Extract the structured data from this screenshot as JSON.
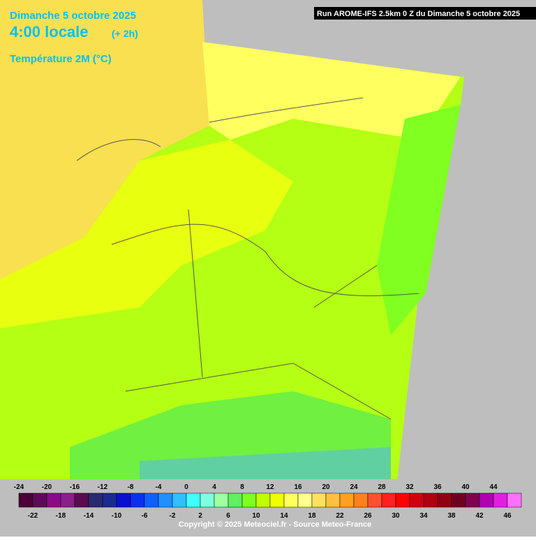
{
  "header": {
    "date": "Dimanche 5 octobre 2025",
    "time": "4:00 locale",
    "offset": "(+ 2h)",
    "variable": "Température 2M (°C)",
    "run": "Run AROME-IFS 2.5km 0 Z du Dimanche 5 octobre 2025"
  },
  "colorbar": {
    "ticks": [
      -24,
      -22,
      -20,
      -18,
      -16,
      -14,
      -12,
      -10,
      -8,
      -6,
      -4,
      -2,
      0,
      2,
      4,
      6,
      8,
      10,
      12,
      14,
      16,
      18,
      20,
      22,
      24,
      26,
      28,
      30,
      32,
      34,
      36,
      38,
      40,
      42,
      44,
      46
    ],
    "colors": [
      "#4a0036",
      "#5e0a5a",
      "#880a88",
      "#8a1e8a",
      "#5a0a50",
      "#2a2a70",
      "#1a2a90",
      "#0a10d0",
      "#0a30f0",
      "#1060ff",
      "#2090ff",
      "#30c0ff",
      "#40ffff",
      "#80ffe0",
      "#a0ffa0",
      "#60f060",
      "#80ff20",
      "#c0ff00",
      "#f0ff00",
      "#ffff60",
      "#ffff90",
      "#ffe060",
      "#ffc040",
      "#ffa020",
      "#ff8020",
      "#ff5030",
      "#ff2020",
      "#ff0000",
      "#d00010",
      "#b00010",
      "#900010",
      "#700020",
      "#800050",
      "#b000b0",
      "#e020e0",
      "#ff70ff"
    ]
  },
  "footer": {
    "copyright": "Copyright © 2025 Meteociel.fr - Source Meteo-France"
  }
}
